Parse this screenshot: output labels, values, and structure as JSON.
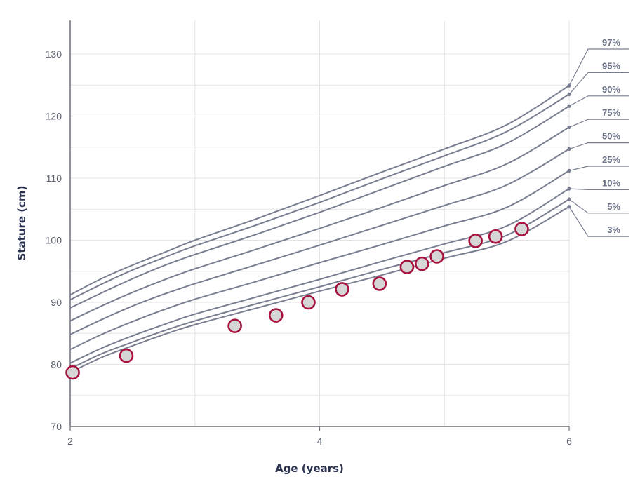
{
  "chart_data": {
    "type": "line",
    "title": "",
    "xlabel": "Age (years)",
    "ylabel": "Stature (cm)",
    "xlim": [
      2,
      6
    ],
    "ylim": [
      70,
      135
    ],
    "x_ticks": [
      2,
      4,
      6
    ],
    "y_ticks": [
      70,
      80,
      90,
      100,
      110,
      120,
      130
    ],
    "grid": true,
    "x_gridlines": [
      2,
      3,
      4,
      5,
      6
    ],
    "y_gridlines": [
      70,
      75,
      80,
      85,
      90,
      95,
      100,
      105,
      110,
      115,
      120,
      125,
      130
    ],
    "x": [
      2.0,
      2.25,
      2.5,
      2.75,
      3.0,
      3.5,
      4.0,
      4.5,
      5.0,
      5.5,
      6.0
    ],
    "series": [
      {
        "name": "97%",
        "values": [
          91.2,
          93.8,
          96.0,
          98.0,
          100.0,
          103.5,
          107.2,
          111.0,
          114.7,
          118.6,
          124.9
        ]
      },
      {
        "name": "95%",
        "values": [
          90.4,
          92.9,
          95.2,
          97.2,
          99.1,
          102.5,
          106.1,
          109.9,
          113.6,
          117.5,
          123.5
        ]
      },
      {
        "name": "90%",
        "values": [
          89.1,
          91.5,
          93.8,
          95.9,
          97.7,
          101.0,
          104.5,
          108.2,
          111.9,
          115.6,
          121.6
        ]
      },
      {
        "name": "75%",
        "values": [
          87.0,
          89.4,
          91.6,
          93.6,
          95.4,
          98.6,
          101.9,
          105.3,
          108.8,
          112.3,
          118.2
        ]
      },
      {
        "name": "50%",
        "values": [
          84.8,
          87.2,
          89.4,
          91.3,
          93.0,
          96.1,
          99.2,
          102.4,
          105.6,
          108.9,
          114.7
        ]
      },
      {
        "name": "25%",
        "values": [
          82.4,
          84.8,
          86.9,
          88.8,
          90.5,
          93.4,
          96.4,
          99.3,
          102.3,
          105.3,
          111.2
        ]
      },
      {
        "name": "10%",
        "values": [
          80.2,
          82.6,
          84.6,
          86.4,
          88.1,
          90.9,
          93.7,
          96.6,
          99.4,
          102.3,
          108.3
        ]
      },
      {
        "name": "5%",
        "values": [
          79.3,
          81.7,
          83.6,
          85.4,
          87.0,
          89.8,
          92.5,
          95.3,
          98.0,
          100.8,
          106.6
        ]
      },
      {
        "name": "3%",
        "values": [
          78.7,
          81.1,
          83.0,
          84.8,
          86.4,
          89.1,
          91.8,
          94.4,
          97.1,
          99.8,
          105.4
        ]
      }
    ],
    "measurements": [
      {
        "x": 2.02,
        "y": 78.7
      },
      {
        "x": 2.45,
        "y": 81.4
      },
      {
        "x": 3.32,
        "y": 86.2
      },
      {
        "x": 3.65,
        "y": 87.9
      },
      {
        "x": 3.91,
        "y": 90.0
      },
      {
        "x": 4.18,
        "y": 92.1
      },
      {
        "x": 4.48,
        "y": 93.0
      },
      {
        "x": 4.7,
        "y": 95.7
      },
      {
        "x": 4.82,
        "y": 96.2
      },
      {
        "x": 4.94,
        "y": 97.4
      },
      {
        "x": 5.25,
        "y": 99.9
      },
      {
        "x": 5.41,
        "y": 100.6
      },
      {
        "x": 5.62,
        "y": 101.8
      }
    ],
    "colors": {
      "grid": "#e3e3e3",
      "axis": "#6b6f78",
      "curve": "#787e90",
      "label": "#6a7185",
      "point_fill": "#d6d6d6",
      "point_stroke": "#a8123e"
    }
  }
}
